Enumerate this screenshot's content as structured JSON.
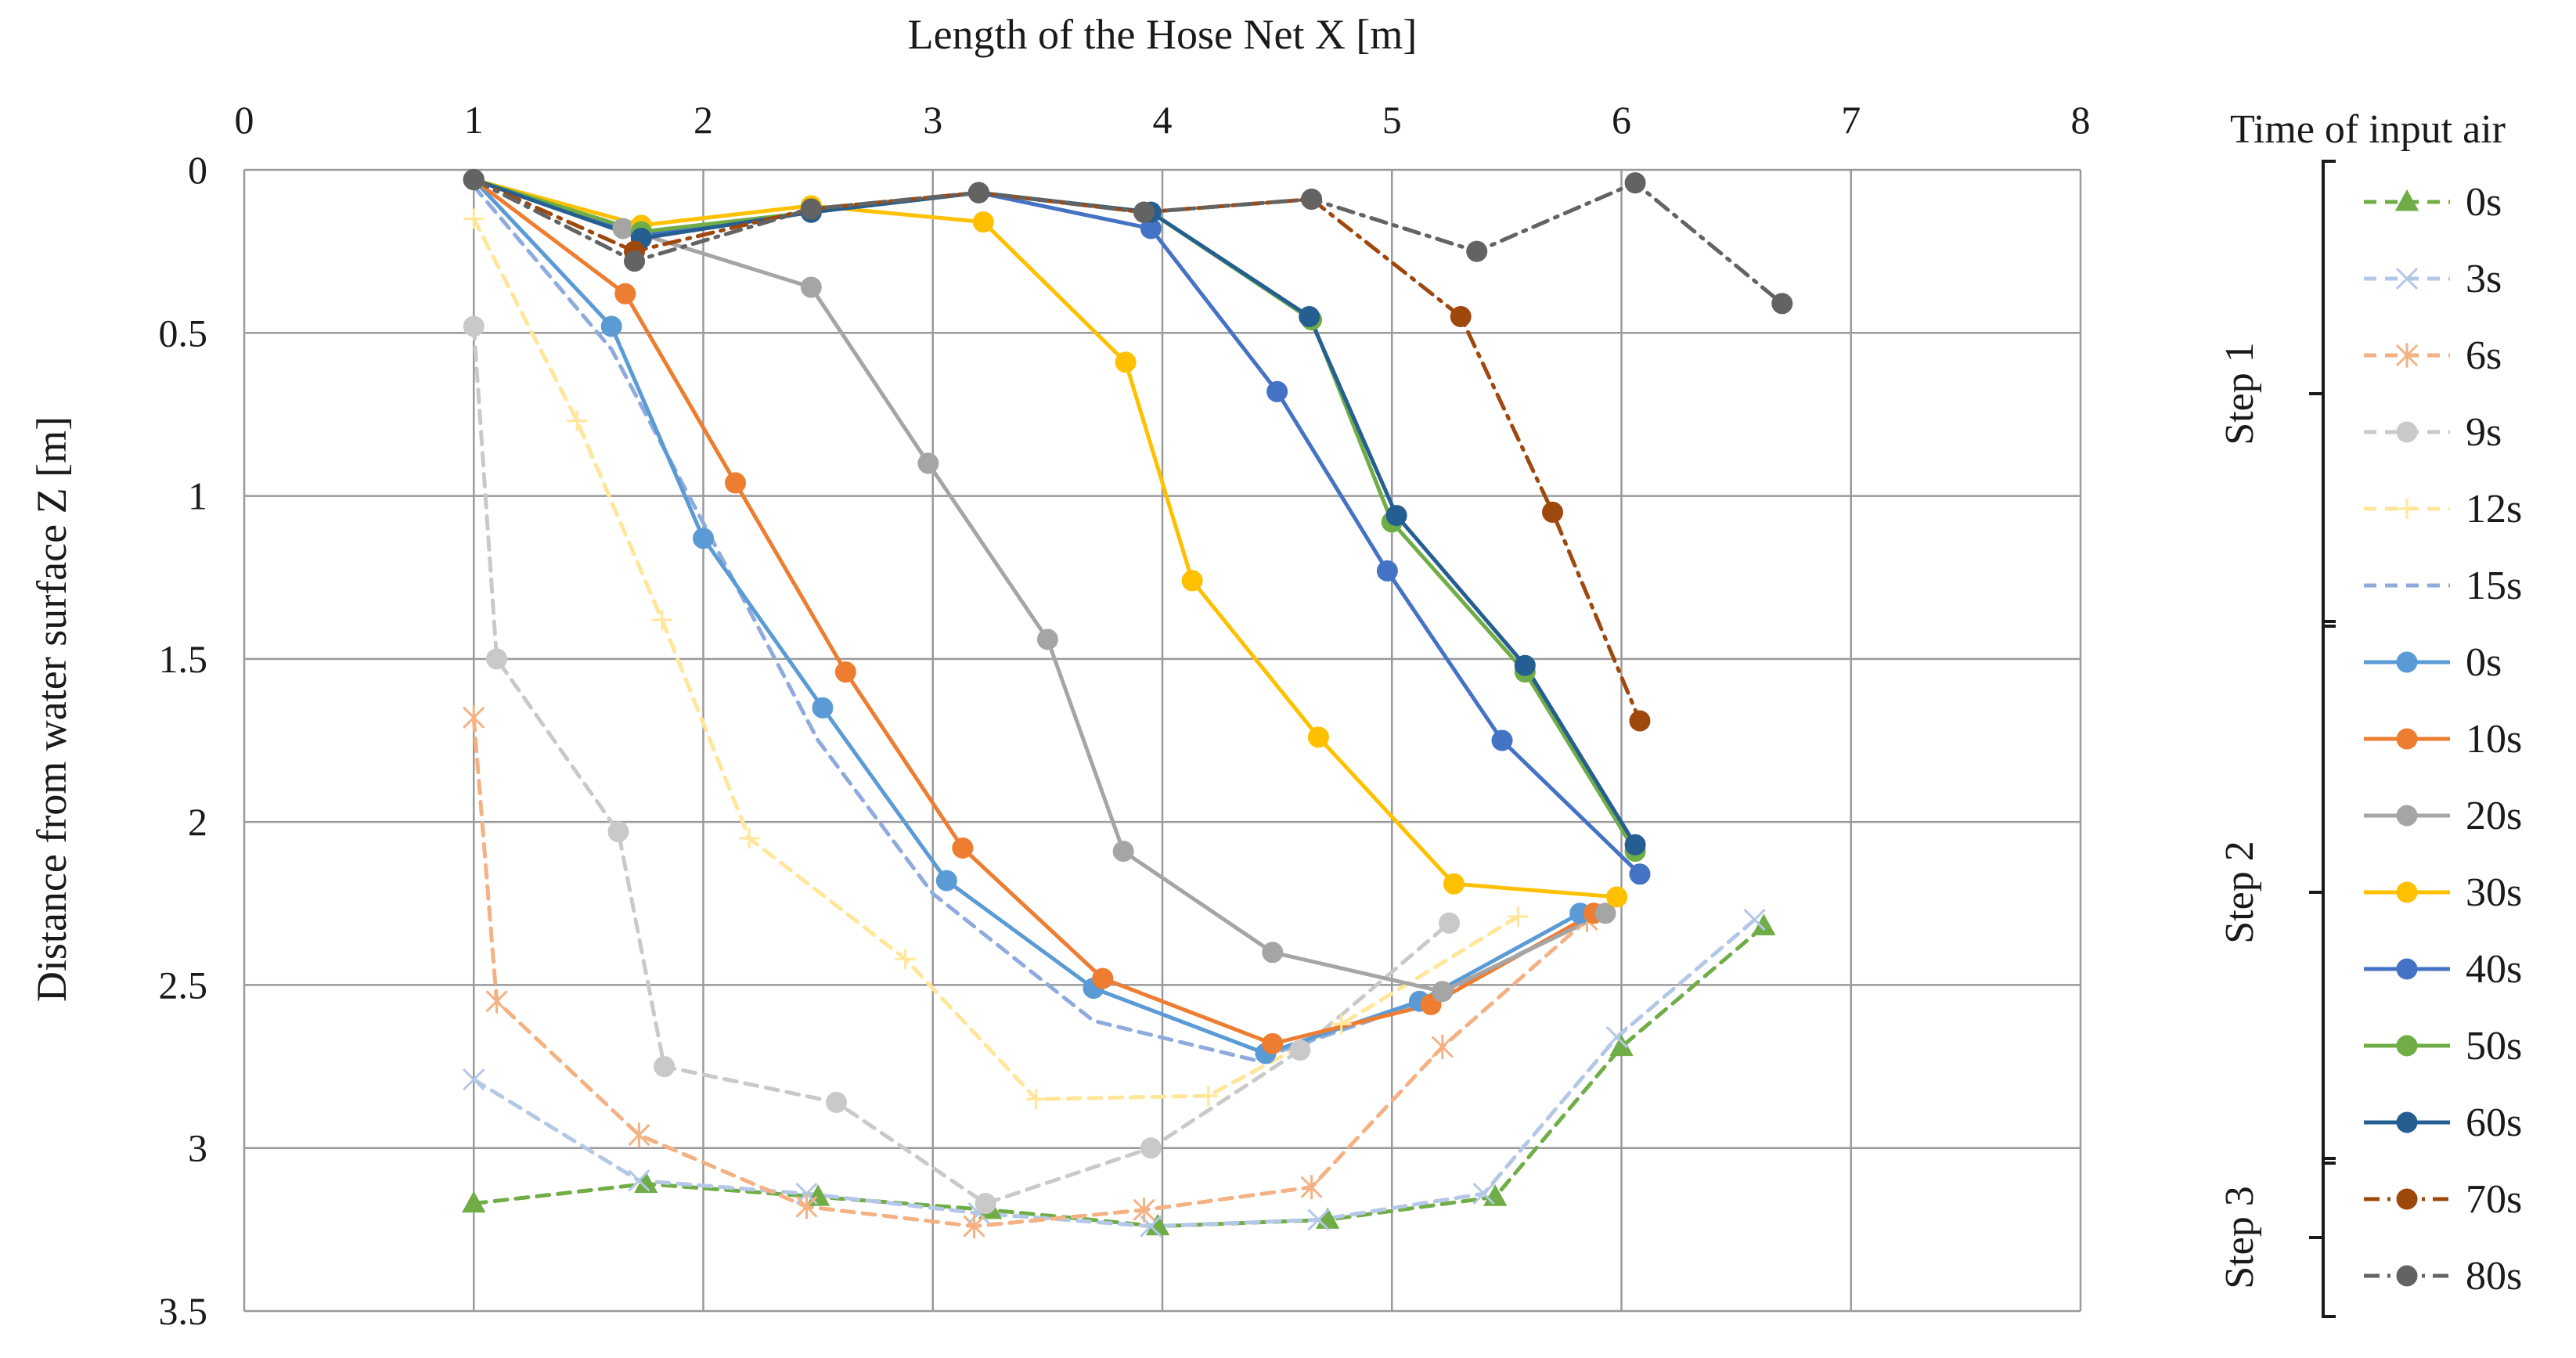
{
  "chart_data": {
    "type": "line",
    "title": "",
    "xlabel": "Length of the Hose Net X [m]",
    "ylabel": "Distance from water surface Z [m]",
    "xlim": [
      0,
      8
    ],
    "ylim": [
      0,
      3.5
    ],
    "y_axis_inverted": true,
    "x_axis_position": "top",
    "x_ticks": [
      "0",
      "1",
      "2",
      "3",
      "4",
      "5",
      "6",
      "7",
      "8"
    ],
    "y_ticks": [
      "0",
      "0.5",
      "1",
      "1.5",
      "2",
      "2.5",
      "3",
      "3.5"
    ],
    "grid": true,
    "legend": {
      "title": "Time of input air",
      "placement": "right",
      "groups": [
        {
          "label": "Step 1",
          "series": [
            0,
            1,
            2,
            3,
            4,
            5
          ]
        },
        {
          "label": "Step 2",
          "series": [
            6,
            7,
            8,
            9,
            10,
            11,
            12
          ]
        },
        {
          "label": "Step 3",
          "series": [
            13,
            14
          ]
        }
      ]
    },
    "series": [
      {
        "name": "0s",
        "step": "Step 1",
        "color": "#70AD47",
        "dash": "dashed",
        "marker": "triangle",
        "x": [
          1.0,
          1.75,
          2.5,
          3.25,
          3.98,
          4.72,
          5.45,
          6.0,
          6.62
        ],
        "y": [
          3.17,
          3.11,
          3.15,
          3.19,
          3.24,
          3.22,
          3.15,
          2.69,
          2.32
        ]
      },
      {
        "name": "3s",
        "step": "Step 1",
        "color": "#B4C7E7",
        "dash": "dashed",
        "marker": "x",
        "x": [
          1.0,
          1.72,
          2.45,
          3.2,
          3.95,
          4.68,
          5.4,
          5.98,
          6.58
        ],
        "y": [
          2.79,
          3.1,
          3.14,
          3.2,
          3.24,
          3.22,
          3.14,
          2.66,
          2.3
        ]
      },
      {
        "name": "6s",
        "step": "Step 1",
        "color": "#F4B183",
        "dash": "dashed",
        "marker": "asterisk",
        "x": [
          1.0,
          1.1,
          1.72,
          2.45,
          3.18,
          3.92,
          4.65,
          5.22,
          5.85
        ],
        "y": [
          1.68,
          2.55,
          2.96,
          3.18,
          3.24,
          3.19,
          3.12,
          2.69,
          2.3
        ]
      },
      {
        "name": "9s",
        "step": "Step 1",
        "color": "#C9C9C9",
        "dash": "dashed",
        "marker": "circle",
        "x": [
          1.0,
          1.1,
          1.63,
          1.83,
          2.58,
          3.23,
          3.95,
          4.6,
          5.25
        ],
        "y": [
          0.48,
          1.5,
          2.03,
          2.75,
          2.86,
          3.17,
          3.0,
          2.7,
          2.31
        ]
      },
      {
        "name": "12s",
        "step": "Step 1",
        "color": "#FFE699",
        "dash": "dashed",
        "marker": "plus",
        "x": [
          1.0,
          1.45,
          1.82,
          2.2,
          2.88,
          3.45,
          4.2,
          4.78,
          5.55
        ],
        "y": [
          0.15,
          0.77,
          1.38,
          2.05,
          2.42,
          2.85,
          2.84,
          2.62,
          2.29
        ]
      },
      {
        "name": "15s",
        "step": "Step 1",
        "color": "#8FAADC",
        "dash": "dashed",
        "marker": "none",
        "x": [
          1.0,
          1.6,
          2.05,
          2.5,
          3.0,
          3.7,
          4.4,
          5.15,
          5.85
        ],
        "y": [
          0.05,
          0.55,
          1.15,
          1.75,
          2.22,
          2.61,
          2.73,
          2.55,
          2.3
        ]
      },
      {
        "name": "0s",
        "step": "Step 2",
        "color": "#5B9BD5",
        "dash": "solid",
        "marker": "circle",
        "x": [
          1.0,
          1.6,
          2.0,
          2.52,
          3.06,
          3.7,
          4.45,
          5.12,
          5.82
        ],
        "y": [
          0.03,
          0.48,
          1.13,
          1.65,
          2.18,
          2.51,
          2.71,
          2.55,
          2.28
        ]
      },
      {
        "name": "10s",
        "step": "Step 2",
        "color": "#ED7D31",
        "dash": "solid",
        "marker": "circle",
        "x": [
          1.0,
          1.66,
          2.14,
          2.62,
          3.13,
          3.74,
          4.48,
          5.17,
          5.88
        ],
        "y": [
          0.03,
          0.38,
          0.96,
          1.54,
          2.08,
          2.48,
          2.68,
          2.56,
          2.28
        ]
      },
      {
        "name": "20s",
        "step": "Step 2",
        "color": "#A5A5A5",
        "dash": "solid",
        "marker": "circle",
        "x": [
          1.0,
          1.65,
          2.47,
          2.98,
          3.5,
          3.83,
          4.48,
          5.22,
          5.93
        ],
        "y": [
          0.03,
          0.18,
          0.36,
          0.9,
          1.44,
          2.09,
          2.4,
          2.52,
          2.28
        ]
      },
      {
        "name": "30s",
        "step": "Step 2",
        "color": "#FFC000",
        "dash": "solid",
        "marker": "circle",
        "x": [
          1.0,
          1.73,
          2.47,
          3.22,
          3.84,
          4.13,
          4.68,
          5.27,
          5.98
        ],
        "y": [
          0.03,
          0.17,
          0.11,
          0.16,
          0.59,
          1.26,
          1.74,
          2.19,
          2.23
        ]
      },
      {
        "name": "40s",
        "step": "Step 2",
        "color": "#4472C4",
        "dash": "solid",
        "marker": "circle",
        "x": [
          1.0,
          1.73,
          2.47,
          3.2,
          3.95,
          4.5,
          4.98,
          5.48,
          6.08
        ],
        "y": [
          0.03,
          0.2,
          0.13,
          0.07,
          0.18,
          0.68,
          1.23,
          1.75,
          2.16
        ]
      },
      {
        "name": "50s",
        "step": "Step 2",
        "color": "#70AD47",
        "dash": "solid",
        "marker": "circle",
        "x": [
          1.0,
          1.73,
          2.47,
          3.2,
          3.95,
          4.65,
          5.0,
          5.58,
          6.06
        ],
        "y": [
          0.03,
          0.19,
          0.13,
          0.07,
          0.13,
          0.46,
          1.08,
          1.54,
          2.09
        ]
      },
      {
        "name": "60s",
        "step": "Step 2",
        "color": "#255E91",
        "dash": "solid",
        "marker": "circle",
        "x": [
          1.0,
          1.73,
          2.47,
          3.2,
          3.95,
          4.64,
          5.02,
          5.58,
          6.06
        ],
        "y": [
          0.03,
          0.21,
          0.13,
          0.07,
          0.13,
          0.45,
          1.06,
          1.52,
          2.07
        ]
      },
      {
        "name": "70s",
        "step": "Step 3",
        "color": "#9E480E",
        "dash": "dashdot",
        "marker": "circle",
        "x": [
          1.0,
          1.7,
          2.47,
          3.2,
          3.92,
          4.65,
          5.3,
          5.7,
          6.08
        ],
        "y": [
          0.03,
          0.25,
          0.12,
          0.07,
          0.13,
          0.09,
          0.45,
          1.05,
          1.69
        ]
      },
      {
        "name": "80s",
        "step": "Step 3",
        "color": "#636363",
        "dash": "dashdot",
        "marker": "circle",
        "x": [
          1.0,
          1.7,
          2.47,
          3.2,
          3.92,
          4.65,
          5.37,
          6.06,
          6.7
        ],
        "y": [
          0.03,
          0.28,
          0.12,
          0.07,
          0.13,
          0.09,
          0.25,
          0.04,
          0.41
        ]
      }
    ]
  }
}
